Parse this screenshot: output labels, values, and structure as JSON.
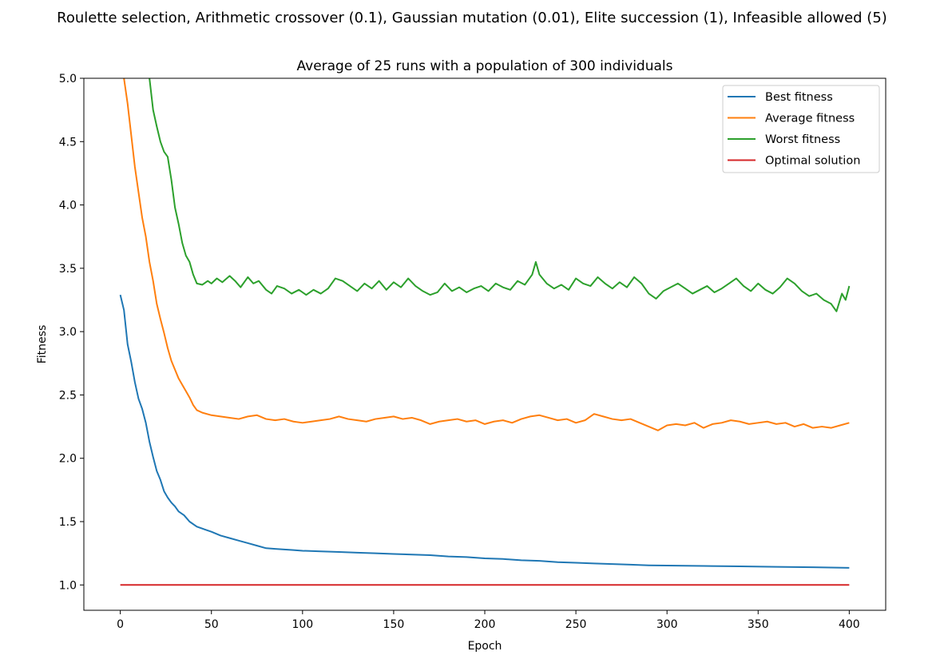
{
  "chart_data": {
    "type": "line",
    "suptitle": "Roulette selection, Arithmetic crossover (0.1), Gaussian mutation (0.01), Elite succession (1), Infeasible allowed (5)",
    "title": "Average of 25 runs with a population of 300 individuals",
    "xlabel": "Epoch",
    "ylabel": "Fitness",
    "xlim": [
      -20,
      420
    ],
    "ylim": [
      0.8,
      5.0
    ],
    "xticks": [
      0,
      50,
      100,
      150,
      200,
      250,
      300,
      350,
      400
    ],
    "yticks": [
      1.0,
      1.5,
      2.0,
      2.5,
      3.0,
      3.5,
      4.0,
      4.5,
      5.0
    ],
    "xtick_labels": [
      "0",
      "50",
      "100",
      "150",
      "200",
      "250",
      "300",
      "350",
      "400"
    ],
    "ytick_labels": [
      "1.0",
      "1.5",
      "2.0",
      "2.5",
      "3.0",
      "3.5",
      "4.0",
      "4.5",
      "5.0"
    ],
    "grid": false,
    "legend": "upper right",
    "series": [
      {
        "name": "Best fitness",
        "color": "#1f77b4",
        "points": [
          [
            0,
            3.29
          ],
          [
            2,
            3.17
          ],
          [
            4,
            2.9
          ],
          [
            6,
            2.76
          ],
          [
            8,
            2.6
          ],
          [
            10,
            2.47
          ],
          [
            12,
            2.39
          ],
          [
            14,
            2.28
          ],
          [
            16,
            2.13
          ],
          [
            18,
            2.01
          ],
          [
            20,
            1.9
          ],
          [
            22,
            1.83
          ],
          [
            24,
            1.74
          ],
          [
            26,
            1.69
          ],
          [
            28,
            1.65
          ],
          [
            30,
            1.62
          ],
          [
            32,
            1.58
          ],
          [
            35,
            1.55
          ],
          [
            38,
            1.5
          ],
          [
            42,
            1.46
          ],
          [
            46,
            1.44
          ],
          [
            50,
            1.42
          ],
          [
            55,
            1.39
          ],
          [
            60,
            1.37
          ],
          [
            65,
            1.35
          ],
          [
            70,
            1.33
          ],
          [
            75,
            1.31
          ],
          [
            80,
            1.29
          ],
          [
            85,
            1.285
          ],
          [
            90,
            1.28
          ],
          [
            95,
            1.275
          ],
          [
            100,
            1.27
          ],
          [
            110,
            1.265
          ],
          [
            120,
            1.26
          ],
          [
            130,
            1.255
          ],
          [
            140,
            1.25
          ],
          [
            150,
            1.245
          ],
          [
            160,
            1.24
          ],
          [
            170,
            1.235
          ],
          [
            180,
            1.225
          ],
          [
            190,
            1.22
          ],
          [
            200,
            1.21
          ],
          [
            210,
            1.205
          ],
          [
            220,
            1.195
          ],
          [
            230,
            1.19
          ],
          [
            240,
            1.18
          ],
          [
            250,
            1.175
          ],
          [
            260,
            1.17
          ],
          [
            270,
            1.165
          ],
          [
            280,
            1.16
          ],
          [
            290,
            1.155
          ],
          [
            300,
            1.153
          ],
          [
            320,
            1.15
          ],
          [
            340,
            1.147
          ],
          [
            360,
            1.143
          ],
          [
            380,
            1.14
          ],
          [
            400,
            1.135
          ]
        ]
      },
      {
        "name": "Average fitness",
        "color": "#ff7f0e",
        "points": [
          [
            2,
            5.0
          ],
          [
            4,
            4.8
          ],
          [
            6,
            4.55
          ],
          [
            8,
            4.3
          ],
          [
            10,
            4.1
          ],
          [
            12,
            3.9
          ],
          [
            14,
            3.75
          ],
          [
            16,
            3.55
          ],
          [
            18,
            3.4
          ],
          [
            20,
            3.22
          ],
          [
            22,
            3.1
          ],
          [
            24,
            2.99
          ],
          [
            26,
            2.87
          ],
          [
            28,
            2.77
          ],
          [
            30,
            2.7
          ],
          [
            32,
            2.63
          ],
          [
            34,
            2.58
          ],
          [
            36,
            2.53
          ],
          [
            38,
            2.48
          ],
          [
            40,
            2.42
          ],
          [
            42,
            2.38
          ],
          [
            45,
            2.36
          ],
          [
            50,
            2.34
          ],
          [
            55,
            2.33
          ],
          [
            60,
            2.32
          ],
          [
            65,
            2.31
          ],
          [
            70,
            2.33
          ],
          [
            75,
            2.34
          ],
          [
            80,
            2.31
          ],
          [
            85,
            2.3
          ],
          [
            90,
            2.31
          ],
          [
            95,
            2.29
          ],
          [
            100,
            2.28
          ],
          [
            105,
            2.29
          ],
          [
            110,
            2.3
          ],
          [
            115,
            2.31
          ],
          [
            120,
            2.33
          ],
          [
            125,
            2.31
          ],
          [
            130,
            2.3
          ],
          [
            135,
            2.29
          ],
          [
            140,
            2.31
          ],
          [
            145,
            2.32
          ],
          [
            150,
            2.33
          ],
          [
            155,
            2.31
          ],
          [
            160,
            2.32
          ],
          [
            165,
            2.3
          ],
          [
            170,
            2.27
          ],
          [
            175,
            2.29
          ],
          [
            180,
            2.3
          ],
          [
            185,
            2.31
          ],
          [
            190,
            2.29
          ],
          [
            195,
            2.3
          ],
          [
            200,
            2.27
          ],
          [
            205,
            2.29
          ],
          [
            210,
            2.3
          ],
          [
            215,
            2.28
          ],
          [
            220,
            2.31
          ],
          [
            225,
            2.33
          ],
          [
            230,
            2.34
          ],
          [
            235,
            2.32
          ],
          [
            240,
            2.3
          ],
          [
            245,
            2.31
          ],
          [
            250,
            2.28
          ],
          [
            255,
            2.3
          ],
          [
            260,
            2.35
          ],
          [
            265,
            2.33
          ],
          [
            270,
            2.31
          ],
          [
            275,
            2.3
          ],
          [
            280,
            2.31
          ],
          [
            285,
            2.28
          ],
          [
            290,
            2.25
          ],
          [
            295,
            2.22
          ],
          [
            300,
            2.26
          ],
          [
            305,
            2.27
          ],
          [
            310,
            2.26
          ],
          [
            315,
            2.28
          ],
          [
            320,
            2.24
          ],
          [
            325,
            2.27
          ],
          [
            330,
            2.28
          ],
          [
            335,
            2.3
          ],
          [
            340,
            2.29
          ],
          [
            345,
            2.27
          ],
          [
            350,
            2.28
          ],
          [
            355,
            2.29
          ],
          [
            360,
            2.27
          ],
          [
            365,
            2.28
          ],
          [
            370,
            2.25
          ],
          [
            375,
            2.27
          ],
          [
            380,
            2.24
          ],
          [
            385,
            2.25
          ],
          [
            390,
            2.24
          ],
          [
            395,
            2.26
          ],
          [
            400,
            2.28
          ]
        ]
      },
      {
        "name": "Worst fitness",
        "color": "#2ca02c",
        "points": [
          [
            16,
            5.0
          ],
          [
            18,
            4.75
          ],
          [
            20,
            4.62
          ],
          [
            22,
            4.5
          ],
          [
            24,
            4.42
          ],
          [
            26,
            4.38
          ],
          [
            28,
            4.2
          ],
          [
            30,
            3.98
          ],
          [
            32,
            3.85
          ],
          [
            34,
            3.7
          ],
          [
            36,
            3.6
          ],
          [
            38,
            3.55
          ],
          [
            40,
            3.45
          ],
          [
            42,
            3.38
          ],
          [
            45,
            3.37
          ],
          [
            48,
            3.4
          ],
          [
            50,
            3.38
          ],
          [
            53,
            3.42
          ],
          [
            56,
            3.39
          ],
          [
            60,
            3.44
          ],
          [
            63,
            3.4
          ],
          [
            66,
            3.35
          ],
          [
            70,
            3.43
          ],
          [
            73,
            3.38
          ],
          [
            76,
            3.4
          ],
          [
            80,
            3.33
          ],
          [
            83,
            3.3
          ],
          [
            86,
            3.36
          ],
          [
            90,
            3.34
          ],
          [
            94,
            3.3
          ],
          [
            98,
            3.33
          ],
          [
            102,
            3.29
          ],
          [
            106,
            3.33
          ],
          [
            110,
            3.3
          ],
          [
            114,
            3.34
          ],
          [
            118,
            3.42
          ],
          [
            122,
            3.4
          ],
          [
            126,
            3.36
          ],
          [
            130,
            3.32
          ],
          [
            134,
            3.38
          ],
          [
            138,
            3.34
          ],
          [
            142,
            3.4
          ],
          [
            146,
            3.33
          ],
          [
            150,
            3.39
          ],
          [
            154,
            3.35
          ],
          [
            158,
            3.42
          ],
          [
            162,
            3.36
          ],
          [
            166,
            3.32
          ],
          [
            170,
            3.29
          ],
          [
            174,
            3.31
          ],
          [
            178,
            3.38
          ],
          [
            182,
            3.32
          ],
          [
            186,
            3.35
          ],
          [
            190,
            3.31
          ],
          [
            194,
            3.34
          ],
          [
            198,
            3.36
          ],
          [
            202,
            3.32
          ],
          [
            206,
            3.38
          ],
          [
            210,
            3.35
          ],
          [
            214,
            3.33
          ],
          [
            218,
            3.4
          ],
          [
            222,
            3.37
          ],
          [
            226,
            3.45
          ],
          [
            228,
            3.55
          ],
          [
            230,
            3.45
          ],
          [
            234,
            3.38
          ],
          [
            238,
            3.34
          ],
          [
            242,
            3.37
          ],
          [
            246,
            3.33
          ],
          [
            250,
            3.42
          ],
          [
            254,
            3.38
          ],
          [
            258,
            3.36
          ],
          [
            262,
            3.43
          ],
          [
            266,
            3.38
          ],
          [
            270,
            3.34
          ],
          [
            274,
            3.39
          ],
          [
            278,
            3.35
          ],
          [
            282,
            3.43
          ],
          [
            286,
            3.38
          ],
          [
            290,
            3.3
          ],
          [
            294,
            3.26
          ],
          [
            298,
            3.32
          ],
          [
            302,
            3.35
          ],
          [
            306,
            3.38
          ],
          [
            310,
            3.34
          ],
          [
            314,
            3.3
          ],
          [
            318,
            3.33
          ],
          [
            322,
            3.36
          ],
          [
            326,
            3.31
          ],
          [
            330,
            3.34
          ],
          [
            334,
            3.38
          ],
          [
            338,
            3.42
          ],
          [
            342,
            3.36
          ],
          [
            346,
            3.32
          ],
          [
            350,
            3.38
          ],
          [
            354,
            3.33
          ],
          [
            358,
            3.3
          ],
          [
            362,
            3.35
          ],
          [
            366,
            3.42
          ],
          [
            370,
            3.38
          ],
          [
            374,
            3.32
          ],
          [
            378,
            3.28
          ],
          [
            382,
            3.3
          ],
          [
            386,
            3.25
          ],
          [
            390,
            3.22
          ],
          [
            393,
            3.16
          ],
          [
            396,
            3.3
          ],
          [
            398,
            3.25
          ],
          [
            400,
            3.36
          ]
        ]
      },
      {
        "name": "Optimal solution",
        "color": "#d62728",
        "points": [
          [
            0,
            1.0
          ],
          [
            400,
            1.0
          ]
        ]
      }
    ]
  }
}
